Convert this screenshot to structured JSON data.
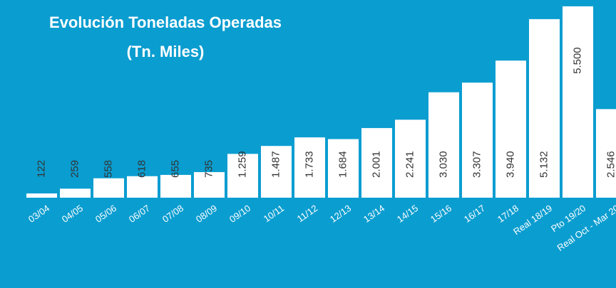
{
  "chart_data": {
    "type": "bar",
    "title": "Evolución Toneladas Operadas",
    "subtitle": "(Tn. Miles)",
    "categories": [
      "03/04",
      "04/05",
      "05/06",
      "06/07",
      "07/08",
      "08/09",
      "09/10",
      "10/11",
      "11/12",
      "12/13",
      "13/14",
      "14/15",
      "15/16",
      "16/17",
      "17/18",
      "Real 18/19",
      "Pto 19/20",
      "Real Oct - Mar 20"
    ],
    "values": [
      122,
      259,
      558,
      618,
      655,
      735,
      1259,
      1487,
      1733,
      1684,
      2001,
      2241,
      3030,
      3307,
      3940,
      5132,
      5500,
      2546
    ],
    "value_labels": [
      "122",
      "259",
      "558",
      "618",
      "655",
      "735",
      "1.259",
      "1.487",
      "1.733",
      "1.684",
      "2.001",
      "2.241",
      "3.030",
      "3.307",
      "3.940",
      "5.132",
      "5.500",
      "2.546"
    ],
    "color": "#ffffff",
    "background": "#0a9dd0",
    "ylim": [
      0,
      5600
    ]
  }
}
